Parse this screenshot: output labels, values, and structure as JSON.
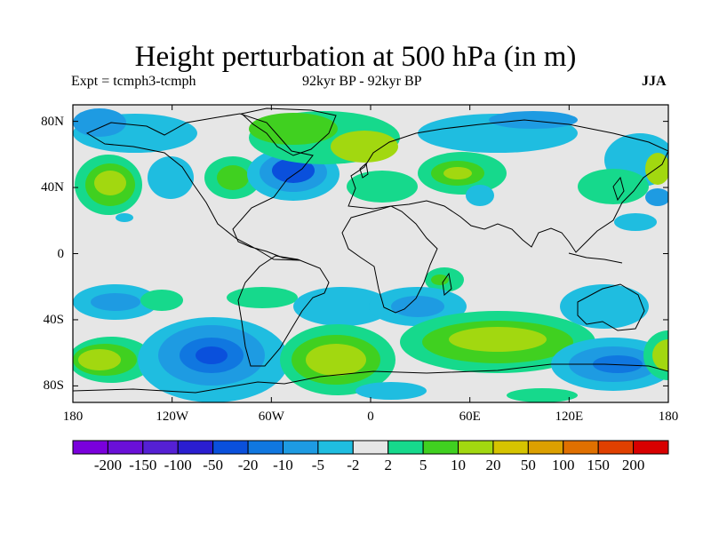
{
  "title": "Height perturbation at 500 hPa (in m)",
  "experiment": "Expt = tcmph3-tcmph",
  "period": "92kyr BP - 92kyr BP",
  "season": "JJA",
  "map": {
    "projection": "cylindrical-equidistant",
    "lon_range": [
      -180,
      180
    ],
    "lat_range": [
      -90,
      90
    ],
    "background_color": "#e6e6e6",
    "coastline_color": "#000000",
    "y_ticks": [
      {
        "label": "80N",
        "lat": 80
      },
      {
        "label": "40N",
        "lat": 40
      },
      {
        "label": "0",
        "lat": 0
      },
      {
        "label": "40S",
        "lat": -40
      },
      {
        "label": "80S",
        "lat": -80
      }
    ],
    "x_ticks": [
      {
        "label": "180",
        "lon": -180
      },
      {
        "label": "120W",
        "lon": -120
      },
      {
        "label": "60W",
        "lon": -60
      },
      {
        "label": "0",
        "lon": 0
      },
      {
        "label": "60E",
        "lon": 60
      },
      {
        "label": "120E",
        "lon": 120
      },
      {
        "label": "180",
        "lon": 180
      }
    ]
  },
  "colorbar": {
    "colors": [
      "#7a00dc",
      "#6a10d8",
      "#5520d4",
      "#2a1ed0",
      "#0a50dc",
      "#1077e0",
      "#1e9be2",
      "#1fbde0",
      "#e6e6e6",
      "#16d98c",
      "#40d020",
      "#a2d810",
      "#d6c400",
      "#dca000",
      "#e07000",
      "#e04000",
      "#d80000"
    ],
    "labels": [
      "-200",
      "-150",
      "-100",
      "-50",
      "-20",
      "-10",
      "-5",
      "-2",
      "2",
      "5",
      "10",
      "20",
      "50",
      "100",
      "150",
      "200"
    ]
  },
  "chart_data": {
    "type": "heatmap",
    "title": "Height perturbation at 500 hPa (in m)",
    "variable": "500 hPa height perturbation (m)",
    "season": "JJA",
    "levels": [
      -200,
      -150,
      -100,
      -50,
      -20,
      -10,
      -5,
      -2,
      2,
      5,
      10,
      20,
      50,
      100,
      150,
      200
    ],
    "features": [
      {
        "region": "Canada / Hudson Bay",
        "lon": -55,
        "lat": 48,
        "value_range": "-20 to -10",
        "sign": "negative"
      },
      {
        "region": "Greenland / North Atlantic",
        "lon": -15,
        "lat": 68,
        "value_range": "10 to 20",
        "sign": "positive"
      },
      {
        "region": "North Pacific",
        "lon": -160,
        "lat": 45,
        "value_range": "10 to 20",
        "sign": "positive"
      },
      {
        "region": "Western Europe / Eastern Atlantic",
        "lon": 5,
        "lat": 50,
        "value_range": "2 to 5",
        "sign": "positive"
      },
      {
        "region": "Caspian / Central Asia",
        "lon": 48,
        "lat": 48,
        "value_range": "5 to 10",
        "sign": "positive"
      },
      {
        "region": "Arctic (Siberia)",
        "lon": 100,
        "lat": 80,
        "value_range": "-10 to -5",
        "sign": "negative"
      },
      {
        "region": "Southeast Pacific",
        "lon": -95,
        "lat": -65,
        "value_range": "-20 to -10",
        "sign": "negative"
      },
      {
        "region": "South Atlantic",
        "lon": -15,
        "lat": -63,
        "value_range": "10 to 20",
        "sign": "positive"
      },
      {
        "region": "Southern Indian Ocean",
        "lon": 75,
        "lat": -48,
        "value_range": "10 to 20",
        "sign": "positive"
      },
      {
        "region": "South of Australia",
        "lon": 135,
        "lat": -65,
        "value_range": "-10 to -5",
        "sign": "negative"
      },
      {
        "region": "Central South Pacific",
        "lon": -178,
        "lat": -60,
        "value_range": "5 to 10",
        "sign": "positive"
      },
      {
        "region": "Southern Africa",
        "lon": 25,
        "lat": -40,
        "value_range": "-10 to -5",
        "sign": "negative"
      }
    ]
  }
}
